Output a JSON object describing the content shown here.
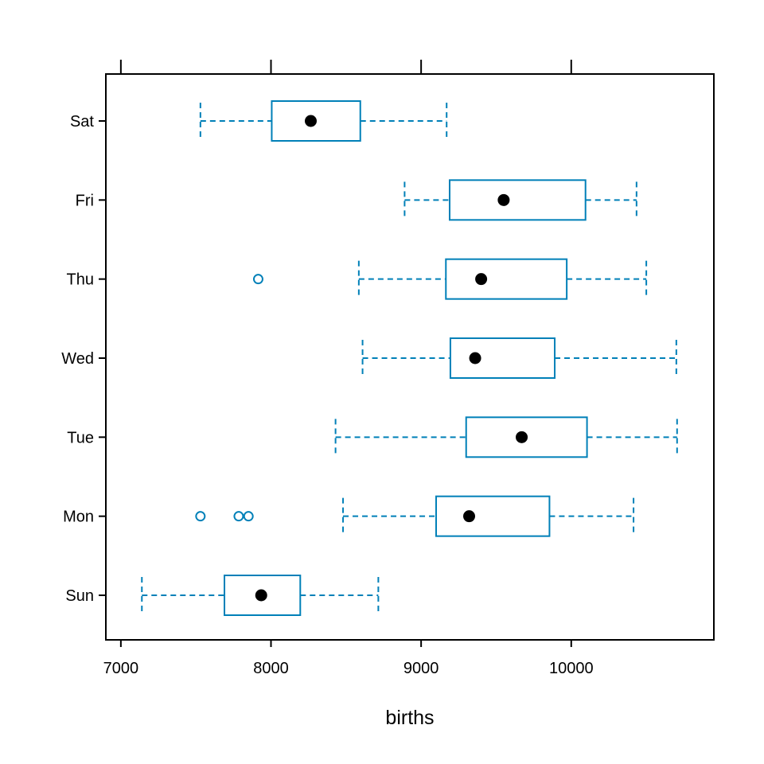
{
  "chart_data": {
    "type": "boxplot",
    "orientation": "horizontal",
    "xlabel": "births",
    "ylabel": "",
    "title": "",
    "xlim": [
      6900,
      10950
    ],
    "xticks": [
      7000,
      8000,
      9000,
      10000
    ],
    "x_tick_labels": [
      "7000",
      "8000",
      "9000",
      "10000"
    ],
    "ticks_on_top": true,
    "grid": false,
    "legend": "none",
    "colors": {
      "box": "#0080b8",
      "median_dot": "#000000",
      "frame": "#000000"
    },
    "categories": [
      "Sun",
      "Mon",
      "Tue",
      "Wed",
      "Thu",
      "Fri",
      "Sat"
    ],
    "boxes": [
      {
        "name": "Sun",
        "whisker_low": 7140,
        "q1": 7690,
        "median": 7935,
        "q3": 8195,
        "whisker_high": 8715,
        "outliers": []
      },
      {
        "name": "Mon",
        "whisker_low": 8480,
        "q1": 9100,
        "median": 9320,
        "q3": 9855,
        "whisker_high": 10415,
        "outliers": [
          7530,
          7785,
          7850
        ]
      },
      {
        "name": "Tue",
        "whisker_low": 8430,
        "q1": 9300,
        "median": 9670,
        "q3": 10105,
        "whisker_high": 10705,
        "outliers": []
      },
      {
        "name": "Wed",
        "whisker_low": 8610,
        "q1": 9195,
        "median": 9360,
        "q3": 9890,
        "whisker_high": 10700,
        "outliers": []
      },
      {
        "name": "Thu",
        "whisker_low": 8585,
        "q1": 9165,
        "median": 9400,
        "q3": 9970,
        "whisker_high": 10500,
        "outliers": [
          7915
        ]
      },
      {
        "name": "Fri",
        "whisker_low": 8890,
        "q1": 9190,
        "median": 9550,
        "q3": 10095,
        "whisker_high": 10435,
        "outliers": []
      },
      {
        "name": "Sat",
        "whisker_low": 7530,
        "q1": 8005,
        "median": 8265,
        "q3": 8595,
        "whisker_high": 9170,
        "outliers": []
      }
    ]
  }
}
